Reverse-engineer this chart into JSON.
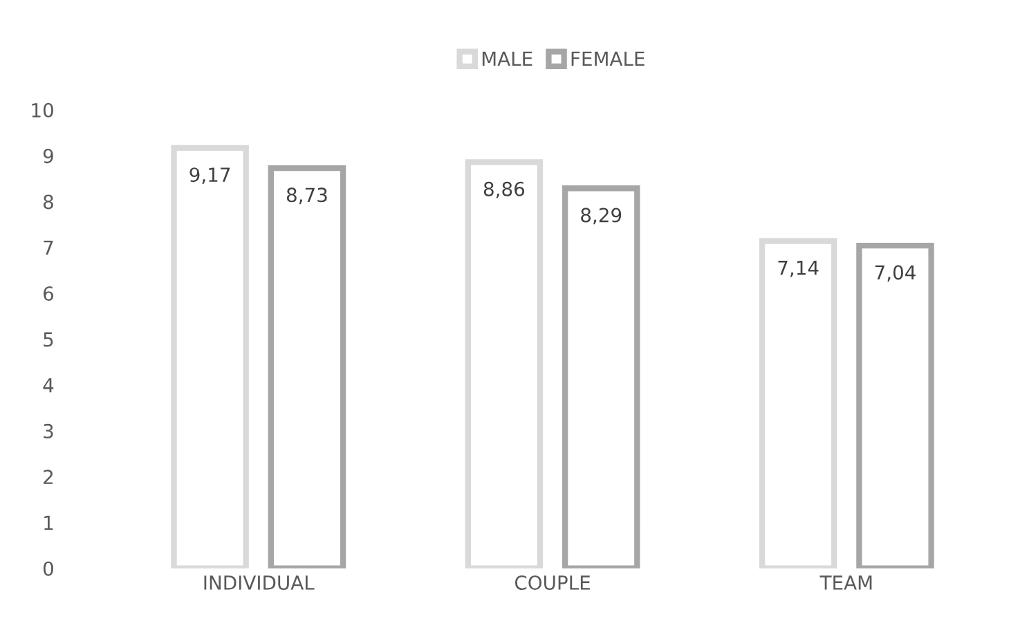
{
  "chart_data": {
    "type": "bar",
    "categories": [
      "INDIVIDUAL",
      "COUPLE",
      "TEAM"
    ],
    "series": [
      {
        "name": "MALE",
        "color": "#d9d9d9",
        "values": [
          9.17,
          8.86,
          7.14
        ],
        "value_labels": [
          "9,17",
          "8,86",
          "7,14"
        ]
      },
      {
        "name": "FEMALE",
        "color": "#a6a6a6",
        "values": [
          8.73,
          8.29,
          7.04
        ],
        "value_labels": [
          "8,73",
          "8,29",
          "7,04"
        ]
      }
    ],
    "ylim": [
      0,
      10
    ],
    "yticks": [
      0,
      1,
      2,
      3,
      4,
      5,
      6,
      7,
      8,
      9,
      10
    ],
    "grid": false,
    "legend": "top"
  }
}
